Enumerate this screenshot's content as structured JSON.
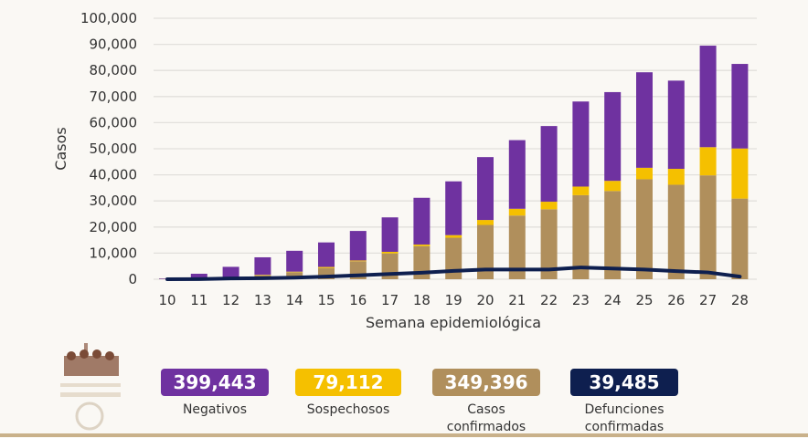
{
  "chart_data": {
    "type": "bar",
    "stacked": true,
    "xlabel": "Semana epidemiológica",
    "ylabel": "Casos",
    "ylim": [
      0,
      100000
    ],
    "yticks": [
      "0",
      "10,000",
      "20,000",
      "30,000",
      "40,000",
      "50,000",
      "60,000",
      "70,000",
      "80,000",
      "90,000",
      "100,000"
    ],
    "ytick_values": [
      0,
      10000,
      20000,
      30000,
      40000,
      50000,
      60000,
      70000,
      80000,
      90000,
      100000
    ],
    "grid": true,
    "categories": [
      "10",
      "11",
      "12",
      "13",
      "14",
      "15",
      "16",
      "17",
      "18",
      "19",
      "20",
      "21",
      "22",
      "23",
      "24",
      "25",
      "26",
      "27",
      "28"
    ],
    "series": [
      {
        "key": "confirmados",
        "color": "#b08f5c",
        "values": [
          100,
          300,
          600,
          1500,
          2700,
          4300,
          6900,
          9900,
          12700,
          15900,
          20800,
          24400,
          26800,
          32200,
          33800,
          38300,
          36200,
          39800,
          30900
        ]
      },
      {
        "key": "sospechosos",
        "color": "#f5c000",
        "values": [
          0,
          0,
          50,
          200,
          200,
          400,
          300,
          600,
          600,
          1000,
          1900,
          2600,
          2900,
          3300,
          3900,
          4400,
          6100,
          10800,
          19200
        ]
      },
      {
        "key": "negativos",
        "color": "#6f32a0",
        "values": [
          200,
          1800,
          4100,
          6700,
          8000,
          9400,
          11300,
          13200,
          17900,
          20600,
          24100,
          26300,
          29000,
          32600,
          34000,
          36600,
          33800,
          38900,
          32400
        ]
      }
    ],
    "line": {
      "key": "defunciones",
      "color": "#0e1f4f",
      "values": [
        0,
        50,
        300,
        400,
        600,
        1000,
        1500,
        2000,
        2500,
        3200,
        3700,
        3700,
        3700,
        4500,
        4100,
        3700,
        3100,
        2600,
        1000
      ]
    }
  },
  "legend": [
    {
      "value": "399,443",
      "label": "Negativos",
      "color": "#6f32a0"
    },
    {
      "value": "79,112",
      "label": "Sospechosos",
      "color": "#f5c000"
    },
    {
      "value": "349,396",
      "label": "Casos confirmados",
      "color": "#b08f5c"
    },
    {
      "value": "39,485",
      "label": "Defunciones confirmadas",
      "color": "#0e1f4f"
    }
  ]
}
